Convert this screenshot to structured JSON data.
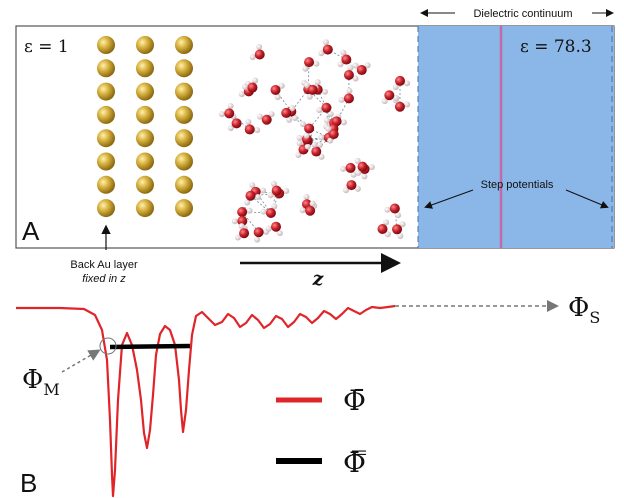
{
  "panel_a": {
    "label": "A",
    "eps_left": "ε = 1",
    "eps_right": "ε = 78.3",
    "dielectric_label": "Dielectric continuum",
    "step_label": "Step potentials",
    "au_label_line1": "Back Au layer",
    "au_label_line2": "fixed in z",
    "z_axis_label": "z"
  },
  "panel_b": {
    "label": "B",
    "phi_s": "Φ",
    "phi_s_sub": "S",
    "phi_m": "Φ",
    "phi_m_sub": "M",
    "legend": [
      {
        "symbol": "Φ̄",
        "color": "#e0252a"
      },
      {
        "symbol": "Φ̿",
        "color": "#000000"
      }
    ]
  },
  "colors": {
    "gold": "#c9a227",
    "continuum": "#8ab7e8",
    "oxygen": "#c8202a",
    "hydrogen": "#e8d4d8",
    "potential": "#e0252a",
    "average": "#000000",
    "pink_line": "#c06aa8"
  }
}
